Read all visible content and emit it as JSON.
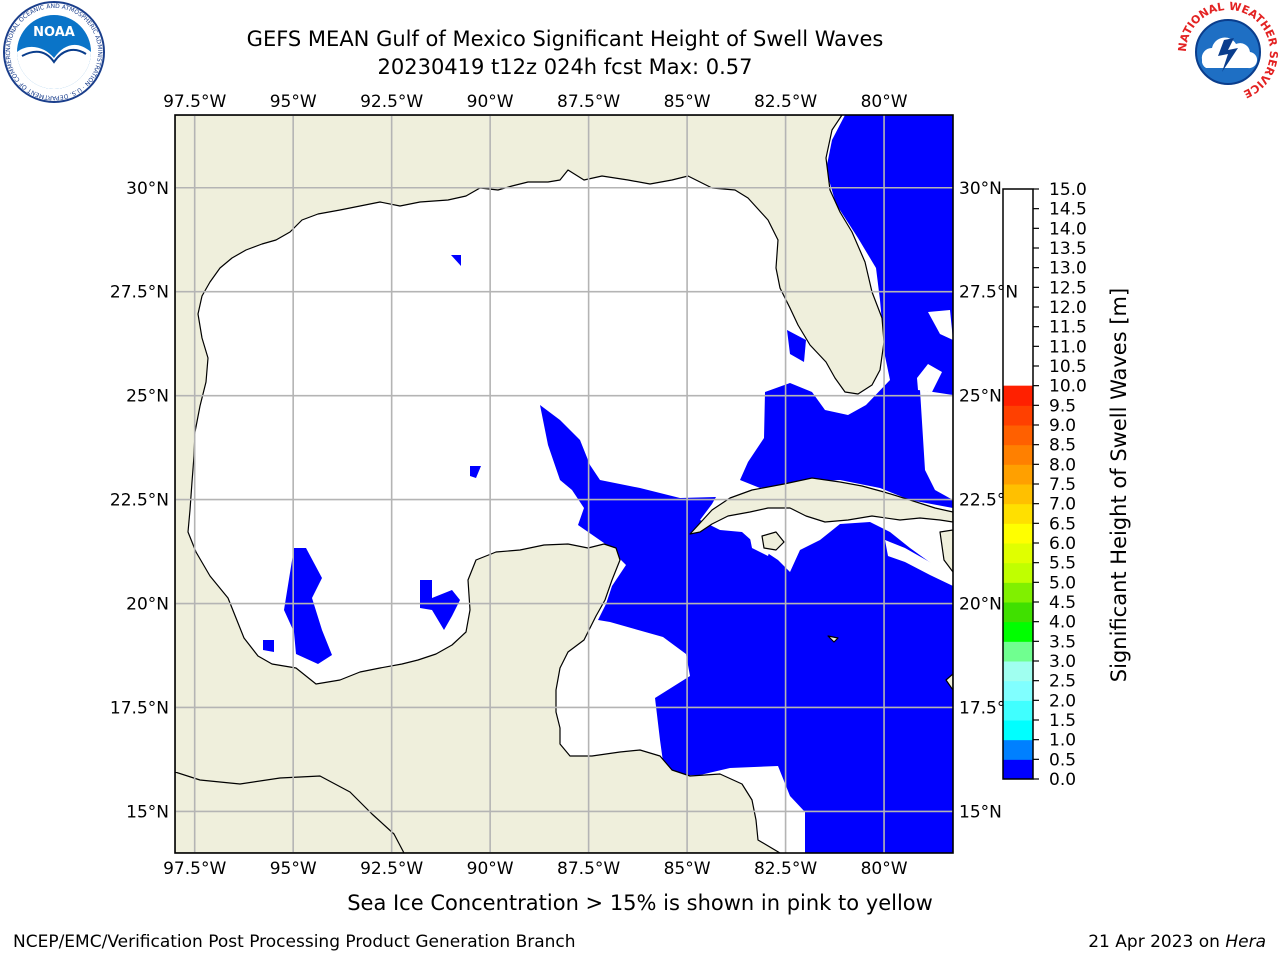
{
  "title": {
    "line1": "GEFS MEAN Gulf of Mexico Significant Height of Swell Waves",
    "line2": "20230419 t12z 024h fcst   Max: 0.57"
  },
  "map": {
    "projection": "cylindrical",
    "lon_range": [
      -98.0,
      -78.25
    ],
    "lat_range": [
      14.0,
      31.75
    ],
    "lon_ticks": [
      "97.5°W",
      "95°W",
      "92.5°W",
      "90°W",
      "87.5°W",
      "85°W",
      "82.5°W",
      "80°W"
    ],
    "lon_tick_values": [
      -97.5,
      -95,
      -92.5,
      -90,
      -87.5,
      -85,
      -82.5,
      -80
    ],
    "lat_ticks": [
      "30°N",
      "27.5°N",
      "25°N",
      "22.5°N",
      "20°N",
      "17.5°N",
      "15°N"
    ],
    "lat_tick_values": [
      30,
      27.5,
      25,
      22.5,
      20,
      17.5,
      15
    ],
    "gridlines": true,
    "colors": {
      "land": "#efefdc",
      "water": "#ffffff",
      "grid": "#b4b4b4",
      "coast": "#000000"
    }
  },
  "colorbar": {
    "label": "Significant Height of Swell Waves [m]",
    "tick_labels": [
      "0.0",
      "0.5",
      "1.0",
      "1.5",
      "2.0",
      "2.5",
      "3.0",
      "3.5",
      "4.0",
      "4.5",
      "5.0",
      "5.5",
      "6.0",
      "6.5",
      "7.0",
      "7.5",
      "8.0",
      "8.5",
      "9.0",
      "9.5",
      "10.0",
      "10.5",
      "11.0",
      "11.5",
      "12.0",
      "12.5",
      "13.0",
      "13.5",
      "14.0",
      "14.5",
      "15.0"
    ],
    "tick_values": [
      0,
      0.5,
      1,
      1.5,
      2,
      2.5,
      3,
      3.5,
      4,
      4.5,
      5,
      5.5,
      6,
      6.5,
      7,
      7.5,
      8,
      8.5,
      9,
      9.5,
      10,
      10.5,
      11,
      11.5,
      12,
      12.5,
      13,
      13.5,
      14,
      14.5,
      15
    ],
    "levels": [
      0,
      0.5,
      1,
      1.5,
      2,
      2.5,
      3,
      3.5,
      4,
      4.5,
      5,
      5.5,
      6,
      6.5,
      7,
      7.5,
      8,
      8.5,
      9,
      9.5,
      10,
      10.5,
      11,
      11.5,
      12,
      12.5,
      13,
      13.5,
      14,
      14.5,
      15
    ],
    "colors": [
      "#0000ff",
      "#0080ff",
      "#00ffff",
      "#40ffff",
      "#80ffff",
      "#a0fff0",
      "#70ff90",
      "#00ff00",
      "#40e000",
      "#80f000",
      "#c0ff00",
      "#e0ff00",
      "#ffff00",
      "#ffe000",
      "#ffc000",
      "#ffa000",
      "#ff8000",
      "#ff6000",
      "#ff4000",
      "#ff2000"
    ],
    "range": [
      0,
      15
    ]
  },
  "note": "Sea Ice Concentration > 15% is shown in pink to yellow",
  "credit": "NCEP/EMC/Verification Post Processing Product Generation Branch",
  "stamp_date": "21 Apr 2023 on",
  "stamp_host": "Hera",
  "logos": {
    "left": {
      "icon": "noaa-logo",
      "text": "NOAA",
      "ring_text": "NATIONAL OCEANIC AND ATMOSPHERIC ADMINISTRATION · U.S. DEPARTMENT OF COMMERCE"
    },
    "right": {
      "icon": "nws-logo",
      "ring_text": "NATIONAL WEATHER SERVICE"
    }
  }
}
